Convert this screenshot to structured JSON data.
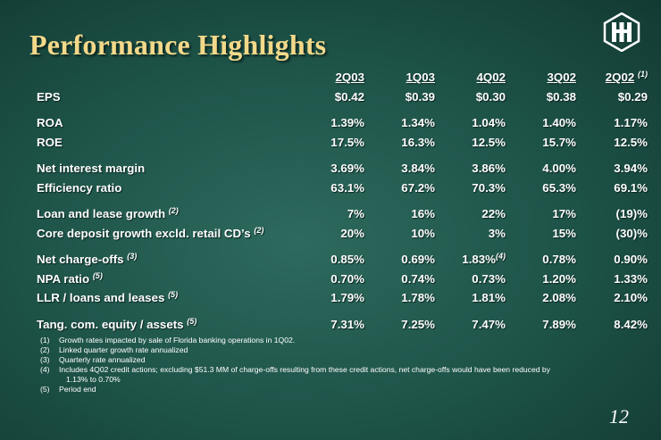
{
  "title": "Performance Highlights",
  "columns": [
    "2Q03",
    "1Q03",
    "4Q02",
    "3Q02",
    "2Q02"
  ],
  "last_column_note": "(1)",
  "rows": [
    {
      "label": "EPS",
      "values": [
        "$0.42",
        "$0.39",
        "$0.30",
        "$0.38",
        "$0.29"
      ]
    },
    {
      "label": "ROA",
      "values": [
        "1.39%",
        "1.34%",
        "1.04%",
        "1.40%",
        "1.17%"
      ]
    },
    {
      "label": "ROE",
      "values": [
        "17.5%",
        "16.3%",
        "12.5%",
        "15.7%",
        "12.5%"
      ]
    },
    {
      "label": "Net interest margin",
      "values": [
        "3.69%",
        "3.84%",
        "3.86%",
        "4.00%",
        "3.94%"
      ]
    },
    {
      "label": "Efficiency ratio",
      "values": [
        "63.1%",
        "67.2%",
        "70.3%",
        "65.3%",
        "69.1%"
      ]
    },
    {
      "label": "Loan and lease growth",
      "note": "(2)",
      "values": [
        "7%",
        "16%",
        "22%",
        "17%",
        "(19)%"
      ]
    },
    {
      "label": "Core deposit growth excld. retail CD’s",
      "note": "(2)",
      "values": [
        "20%",
        "10%",
        "3%",
        "15%",
        "(30)%"
      ]
    },
    {
      "label": "Net charge-offs",
      "note": "(3)",
      "values": [
        "0.85%",
        "0.69%",
        "1.83%",
        "0.78%",
        "0.90%"
      ],
      "value_note": "(4)"
    },
    {
      "label": "NPA ratio",
      "note": "(5)",
      "values": [
        "0.70%",
        "0.74%",
        "0.73%",
        "1.20%",
        "1.33%"
      ]
    },
    {
      "label": "LLR / loans and leases",
      "note": "(5)",
      "values": [
        "1.79%",
        "1.78%",
        "1.81%",
        "2.08%",
        "2.10%"
      ]
    },
    {
      "label": "Tang. com. equity / assets",
      "note": "(5)",
      "values": [
        "7.31%",
        "7.25%",
        "7.47%",
        "7.89%",
        "8.42%"
      ]
    }
  ],
  "footnotes": [
    {
      "num": "(1)",
      "text": "Growth rates impacted by sale of Florida banking operations in 1Q02."
    },
    {
      "num": "(2)",
      "text": "Linked quarter growth rate annualized"
    },
    {
      "num": "(3)",
      "text": "Quarterly rate annualized"
    },
    {
      "num": "(4)",
      "text": "Includes 4Q02 credit actions; excluding $51.3 MM of charge-offs resulting from these credit actions, net charge-offs would have been reduced by",
      "text_cont": "1.13% to 0.70%"
    },
    {
      "num": "(5)",
      "text": "Period end"
    }
  ],
  "page_number": "12",
  "colors": {
    "background": "#1d5247",
    "title": "#f3d98a",
    "text": "#ffffff"
  },
  "logo_icon": "huntington-logo-icon"
}
